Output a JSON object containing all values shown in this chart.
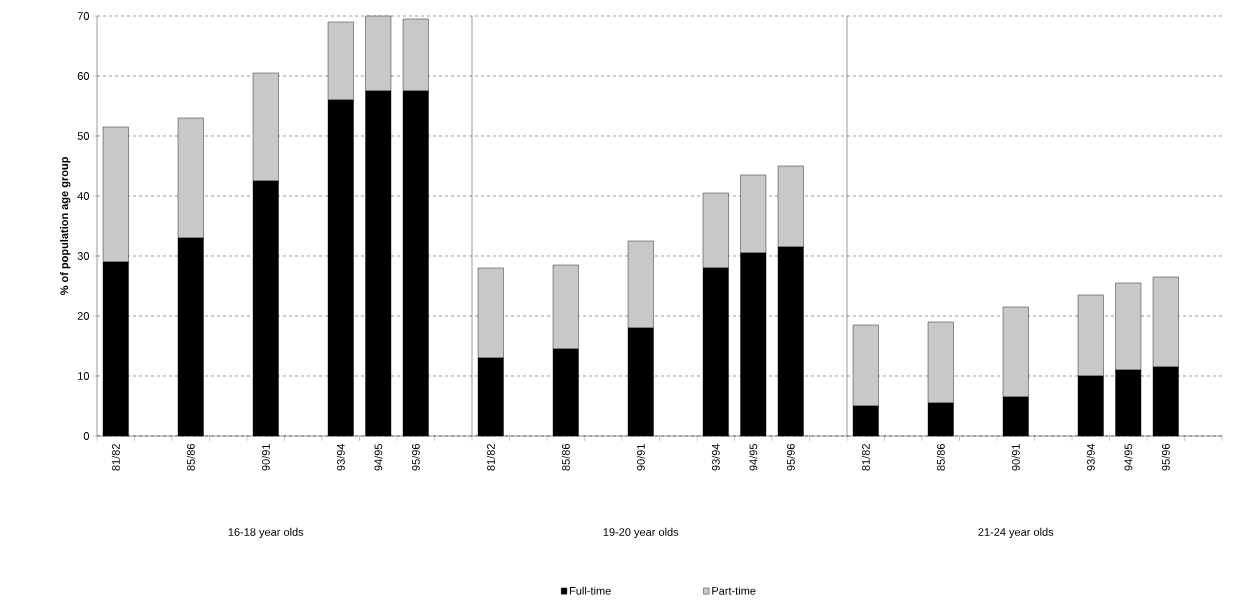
{
  "chart_data": {
    "type": "bar",
    "stacked": true,
    "ylabel": "% of population age group",
    "categories": [
      "81/82",
      null,
      "85/86",
      null,
      "90/91",
      null,
      "93/94",
      "94/95",
      "95/96",
      null,
      "81/82",
      null,
      "85/86",
      null,
      "90/91",
      null,
      "93/94",
      "94/95",
      "95/96",
      null,
      "81/82",
      null,
      "85/86",
      null,
      "90/91",
      null,
      "93/94",
      "94/95",
      "95/96",
      null
    ],
    "series": [
      {
        "name": "Full-time",
        "color": "#000000",
        "values": [
          29,
          null,
          33,
          null,
          42.5,
          null,
          56,
          57.5,
          57.5,
          null,
          13,
          null,
          14.5,
          null,
          18,
          null,
          28,
          30.5,
          31.5,
          null,
          5,
          null,
          5.5,
          null,
          6.5,
          null,
          10,
          11,
          11.5,
          null
        ]
      },
      {
        "name": "Part-time",
        "color": "#c8c8c8",
        "values": [
          22.5,
          null,
          20,
          null,
          18,
          null,
          13,
          12.5,
          12,
          null,
          15,
          null,
          14,
          null,
          14.5,
          null,
          12.5,
          13,
          13.5,
          null,
          13.5,
          null,
          13.5,
          null,
          15,
          null,
          13.5,
          14.5,
          15,
          null
        ]
      }
    ],
    "ylim": [
      0,
      70
    ],
    "yticks": [
      0,
      10,
      20,
      30,
      40,
      50,
      60,
      70
    ],
    "grid": "y",
    "legend": "bottom",
    "annotations": [
      "16-18 year olds",
      "19-20 year olds",
      "21-24 year olds"
    ]
  }
}
